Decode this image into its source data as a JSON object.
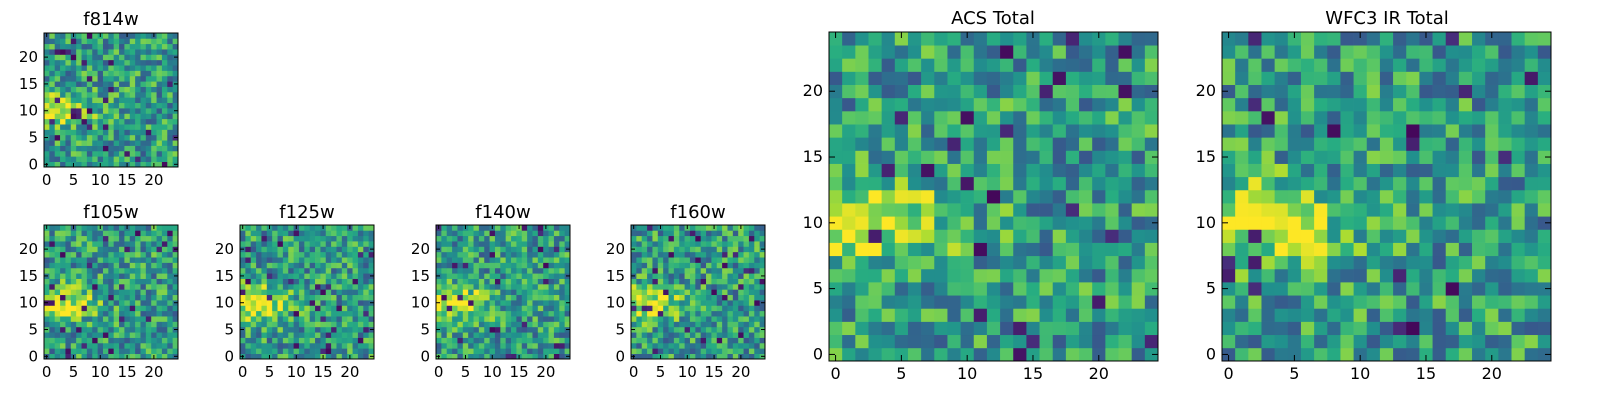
{
  "chart_data": [
    {
      "type": "heatmap",
      "title": "f814w",
      "x_ticks": [
        "0",
        "5",
        "10",
        "15",
        "20"
      ],
      "y_ticks": [
        "0",
        "5",
        "10",
        "15",
        "20"
      ],
      "xlim": [
        -0.5,
        24.5
      ],
      "ylim": [
        -0.5,
        24.5
      ],
      "grid_size": 25,
      "colormap": "viridis",
      "bright_region": "left-center, rows ~7-12"
    },
    {
      "type": "heatmap",
      "title": "f105w",
      "x_ticks": [
        "0",
        "5",
        "10",
        "15",
        "20"
      ],
      "y_ticks": [
        "0",
        "5",
        "10",
        "15",
        "20"
      ],
      "xlim": [
        -0.5,
        24.5
      ],
      "ylim": [
        -0.5,
        24.5
      ],
      "grid_size": 25,
      "colormap": "viridis",
      "bright_region": "left-center, rows ~7-12"
    },
    {
      "type": "heatmap",
      "title": "f125w",
      "x_ticks": [
        "0",
        "5",
        "10",
        "15",
        "20"
      ],
      "y_ticks": [
        "0",
        "5",
        "10",
        "15",
        "20"
      ],
      "xlim": [
        -0.5,
        24.5
      ],
      "ylim": [
        -0.5,
        24.5
      ],
      "grid_size": 25,
      "colormap": "viridis",
      "bright_region": "left-center, rows ~7-12"
    },
    {
      "type": "heatmap",
      "title": "f140w",
      "x_ticks": [
        "0",
        "5",
        "10",
        "15",
        "20"
      ],
      "y_ticks": [
        "0",
        "5",
        "10",
        "15",
        "20"
      ],
      "xlim": [
        -0.5,
        24.5
      ],
      "ylim": [
        -0.5,
        24.5
      ],
      "grid_size": 25,
      "colormap": "viridis",
      "bright_region": "left-center, rows ~7-12"
    },
    {
      "type": "heatmap",
      "title": "f160w",
      "x_ticks": [
        "0",
        "5",
        "10",
        "15",
        "20"
      ],
      "y_ticks": [
        "0",
        "5",
        "10",
        "15",
        "20"
      ],
      "xlim": [
        -0.5,
        24.5
      ],
      "ylim": [
        -0.5,
        24.5
      ],
      "grid_size": 25,
      "colormap": "viridis",
      "bright_region": "left-center, rows ~7-12"
    },
    {
      "type": "heatmap",
      "title": "ACS Total",
      "x_ticks": [
        "0",
        "5",
        "10",
        "15",
        "20"
      ],
      "y_ticks": [
        "0",
        "5",
        "10",
        "15",
        "20"
      ],
      "xlim": [
        -0.5,
        24.5
      ],
      "ylim": [
        -0.5,
        24.5
      ],
      "grid_size": 25,
      "colormap": "viridis",
      "bright_region": "left-center, rows ~7-12"
    },
    {
      "type": "heatmap",
      "title": "WFC3 IR Total",
      "x_ticks": [
        "0",
        "5",
        "10",
        "15",
        "20"
      ],
      "y_ticks": [
        "0",
        "5",
        "10",
        "15",
        "20"
      ],
      "xlim": [
        -0.5,
        24.5
      ],
      "ylim": [
        -0.5,
        24.5
      ],
      "grid_size": 25,
      "colormap": "viridis",
      "bright_region": "left-center, rows ~7-12"
    }
  ]
}
